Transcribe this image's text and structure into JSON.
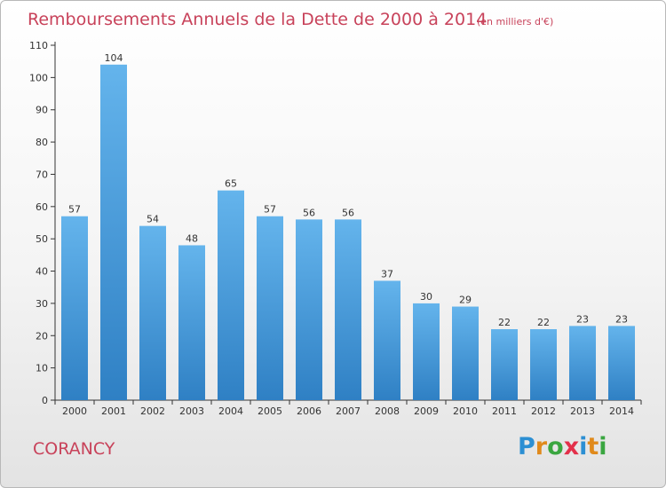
{
  "chart_data": {
    "type": "bar",
    "title": "Remboursements Annuels de la Dette de 2000 à 2014",
    "unit": "(en milliers d'€)",
    "categories": [
      "2000",
      "2001",
      "2002",
      "2003",
      "2004",
      "2005",
      "2006",
      "2007",
      "2008",
      "2009",
      "2010",
      "2011",
      "2012",
      "2013",
      "2014"
    ],
    "values": [
      57,
      104,
      54,
      48,
      65,
      57,
      56,
      56,
      37,
      30,
      29,
      22,
      22,
      23,
      23
    ],
    "ylim": [
      0,
      110
    ],
    "yticks": [
      0,
      10,
      20,
      30,
      40,
      50,
      60,
      70,
      80,
      90,
      100,
      110
    ],
    "xlabel": "",
    "ylabel": "",
    "grid": false,
    "colors": {
      "bar_top": "#64b4ec",
      "bar_bottom": "#2f80c4",
      "title": "#c8425a"
    }
  },
  "commune": "CORANCY",
  "logo": {
    "letters": [
      "P",
      "r",
      "o",
      "x",
      "i",
      "t",
      "i"
    ],
    "colors": [
      "#2c8fd3",
      "#e08a1c",
      "#3aa640",
      "#e3304a",
      "#2c8fd3",
      "#e08a1c",
      "#3aa640"
    ]
  }
}
